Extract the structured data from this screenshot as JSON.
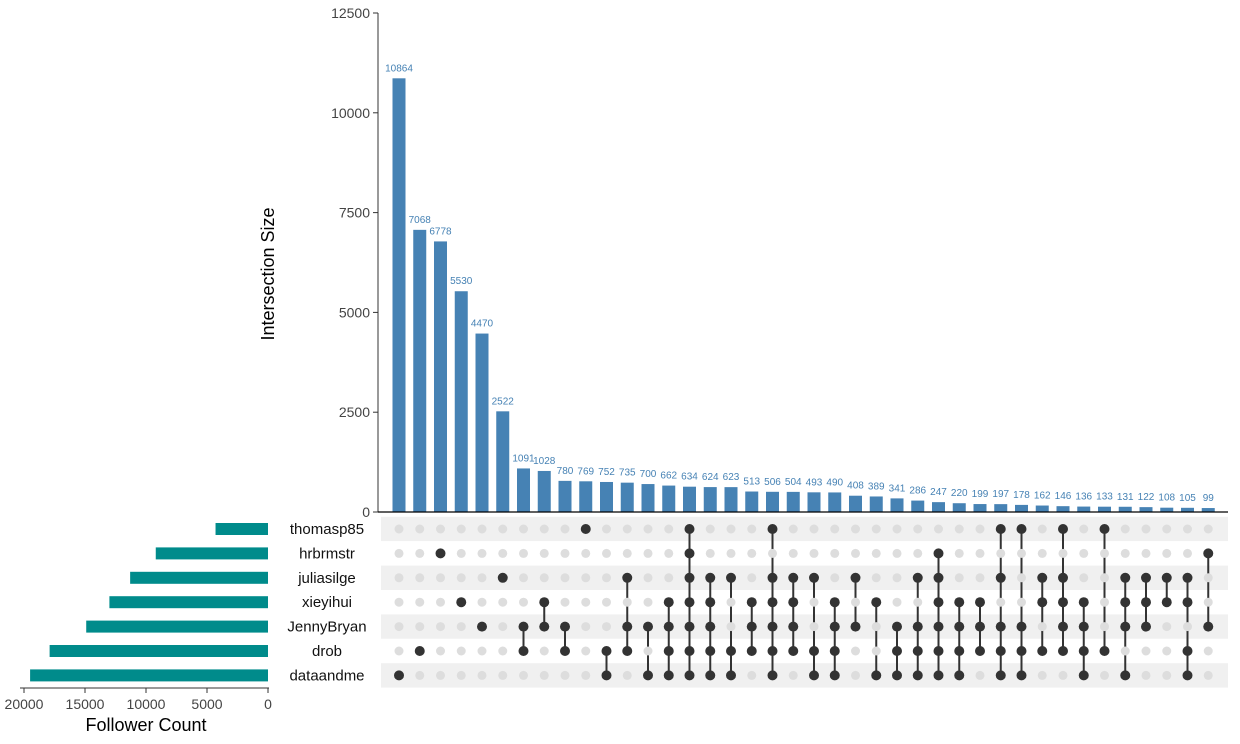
{
  "chart_data": {
    "type": "upset",
    "bar_color": "#4682B4",
    "set_bar_color": "#008B8B",
    "dot_on_color": "#333333",
    "dot_off_color": "#DDDDDD",
    "stripe_color": "#F0F0F0",
    "intersection_axis": {
      "title": "Intersection Size",
      "ylim": [
        0,
        12500
      ],
      "ticks": [
        0,
        2500,
        5000,
        7500,
        10000,
        12500
      ],
      "tick_labels": [
        "0",
        "2500",
        "5000",
        "7500",
        "10000",
        "12500"
      ]
    },
    "set_size_axis": {
      "title": "Follower Count",
      "xlim": [
        0,
        20000
      ],
      "ticks": [
        20000,
        15000,
        10000,
        5000,
        0
      ],
      "tick_labels": [
        "20000",
        "15000",
        "10000",
        "5000",
        "0"
      ]
    },
    "sets": [
      {
        "name": "thomasp85",
        "size": 4300
      },
      {
        "name": "hrbrmstr",
        "size": 9200
      },
      {
        "name": "juliasilge",
        "size": 11300
      },
      {
        "name": "xieyihui",
        "size": 13000
      },
      {
        "name": "JennyBryan",
        "size": 14900
      },
      {
        "name": "drob",
        "size": 17900
      },
      {
        "name": "dataandme",
        "size": 19500
      }
    ],
    "intersections": [
      {
        "value": 10864,
        "label": "10864",
        "sets": [
          "dataandme"
        ]
      },
      {
        "value": 7068,
        "label": "7068",
        "sets": [
          "drob"
        ]
      },
      {
        "value": 6778,
        "label": "6778",
        "sets": [
          "hrbrmstr"
        ]
      },
      {
        "value": 5530,
        "label": "5530",
        "sets": [
          "xieyihui"
        ]
      },
      {
        "value": 4470,
        "label": "4470",
        "sets": [
          "JennyBryan"
        ]
      },
      {
        "value": 2522,
        "label": "2522",
        "sets": [
          "juliasilge"
        ]
      },
      {
        "value": 1091,
        "label": "1091",
        "sets": [
          "JennyBryan",
          "drob"
        ]
      },
      {
        "value": 1028,
        "label": "1028",
        "sets": [
          "xieyihui",
          "JennyBryan"
        ]
      },
      {
        "value": 780,
        "label": "780",
        "sets": [
          "JennyBryan",
          "drob"
        ]
      },
      {
        "value": 769,
        "label": "769",
        "sets": [
          "thomasp85"
        ]
      },
      {
        "value": 752,
        "label": "752",
        "sets": [
          "drob",
          "dataandme"
        ]
      },
      {
        "value": 735,
        "label": "735",
        "sets": [
          "juliasilge",
          "JennyBryan",
          "drob"
        ]
      },
      {
        "value": 700,
        "label": "700",
        "sets": [
          "JennyBryan",
          "dataandme"
        ]
      },
      {
        "value": 662,
        "label": "662",
        "sets": [
          "xieyihui",
          "JennyBryan",
          "drob",
          "dataandme"
        ]
      },
      {
        "value": 634,
        "label": "634",
        "sets": [
          "thomasp85",
          "hrbrmstr",
          "juliasilge",
          "xieyihui",
          "JennyBryan",
          "drob",
          "dataandme"
        ]
      },
      {
        "value": 624,
        "label": "624",
        "sets": [
          "juliasilge",
          "xieyihui",
          "JennyBryan",
          "drob",
          "dataandme"
        ]
      },
      {
        "value": 623,
        "label": "623",
        "sets": [
          "juliasilge",
          "drob",
          "dataandme"
        ]
      },
      {
        "value": 513,
        "label": "513",
        "sets": [
          "xieyihui",
          "JennyBryan",
          "drob"
        ]
      },
      {
        "value": 506,
        "label": "506",
        "sets": [
          "thomasp85",
          "juliasilge",
          "xieyihui",
          "JennyBryan",
          "drob",
          "dataandme"
        ]
      },
      {
        "value": 504,
        "label": "504",
        "sets": [
          "juliasilge",
          "xieyihui",
          "JennyBryan",
          "drob"
        ]
      },
      {
        "value": 493,
        "label": "493",
        "sets": [
          "juliasilge",
          "drob",
          "dataandme"
        ]
      },
      {
        "value": 490,
        "label": "490",
        "sets": [
          "xieyihui",
          "JennyBryan",
          "drob",
          "dataandme"
        ]
      },
      {
        "value": 408,
        "label": "408",
        "sets": [
          "juliasilge",
          "JennyBryan"
        ]
      },
      {
        "value": 389,
        "label": "389",
        "sets": [
          "xieyihui",
          "dataandme"
        ]
      },
      {
        "value": 341,
        "label": "341",
        "sets": [
          "JennyBryan",
          "drob",
          "dataandme"
        ]
      },
      {
        "value": 286,
        "label": "286",
        "sets": [
          "juliasilge",
          "JennyBryan",
          "drob",
          "dataandme"
        ]
      },
      {
        "value": 247,
        "label": "247",
        "sets": [
          "hrbrmstr",
          "juliasilge",
          "xieyihui",
          "JennyBryan",
          "drob",
          "dataandme"
        ]
      },
      {
        "value": 220,
        "label": "220",
        "sets": [
          "xieyihui",
          "JennyBryan",
          "drob",
          "dataandme"
        ]
      },
      {
        "value": 199,
        "label": "199",
        "sets": [
          "xieyihui",
          "JennyBryan",
          "drob"
        ]
      },
      {
        "value": 197,
        "label": "197",
        "sets": [
          "thomasp85",
          "juliasilge",
          "JennyBryan",
          "drob",
          "dataandme"
        ]
      },
      {
        "value": 178,
        "label": "178",
        "sets": [
          "thomasp85",
          "JennyBryan",
          "drob",
          "dataandme"
        ]
      },
      {
        "value": 162,
        "label": "162",
        "sets": [
          "juliasilge",
          "xieyihui",
          "drob"
        ]
      },
      {
        "value": 146,
        "label": "146",
        "sets": [
          "thomasp85",
          "juliasilge",
          "xieyihui",
          "JennyBryan",
          "drob"
        ]
      },
      {
        "value": 136,
        "label": "136",
        "sets": [
          "xieyihui",
          "JennyBryan",
          "drob",
          "dataandme"
        ]
      },
      {
        "value": 133,
        "label": "133",
        "sets": [
          "thomasp85",
          "drob"
        ]
      },
      {
        "value": 131,
        "label": "131",
        "sets": [
          "juliasilge",
          "xieyihui",
          "JennyBryan",
          "dataandme"
        ]
      },
      {
        "value": 122,
        "label": "122",
        "sets": [
          "juliasilge",
          "xieyihui",
          "JennyBryan"
        ]
      },
      {
        "value": 108,
        "label": "108",
        "sets": [
          "juliasilge",
          "xieyihui"
        ]
      },
      {
        "value": 105,
        "label": "105",
        "sets": [
          "juliasilge",
          "xieyihui",
          "drob",
          "dataandme"
        ]
      },
      {
        "value": 99,
        "label": "99",
        "sets": [
          "hrbrmstr",
          "JennyBryan"
        ]
      }
    ]
  }
}
